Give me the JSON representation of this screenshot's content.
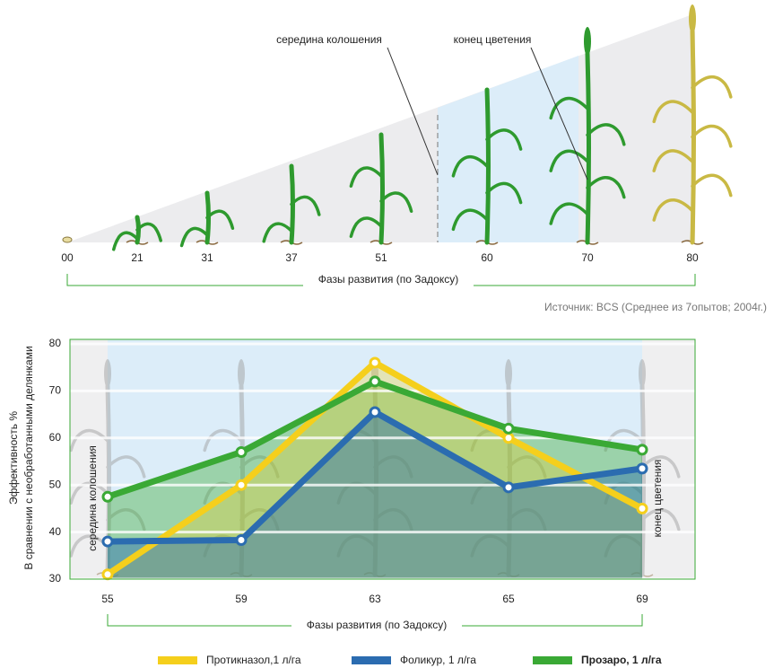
{
  "chart_data": [
    {
      "type": "stages",
      "categories": [
        "00",
        "21",
        "31",
        "37",
        "51",
        "60",
        "70",
        "80"
      ],
      "annotations": [
        "середина колошения",
        "конец цветения"
      ],
      "xlabel": "Фазы развития  (по Задоксу)",
      "source": "Источник: BCS (Среднее из 7опытов; 2004г.)"
    },
    {
      "type": "line",
      "categories": [
        "55",
        "59",
        "63",
        "65",
        "69"
      ],
      "ylabel": "Эффективность %",
      "ysublabel": "В сравнении с необработанными делянками",
      "xlabel": "Фазы развития  (по Задоксу)",
      "annotations": [
        "середина колошения",
        "конец цветения"
      ],
      "ylim": [
        30,
        80
      ],
      "yticks": [
        30,
        40,
        50,
        60,
        70,
        80
      ],
      "grid": true,
      "series": [
        {
          "name": "Протикназол,1 л/га",
          "color": "#f5cf1c",
          "values": [
            31,
            50,
            76,
            60,
            45
          ]
        },
        {
          "name": "Фоликур, 1 л/га",
          "color": "#2b6cb0",
          "values": [
            38,
            38.3,
            65.5,
            49.5,
            53.5
          ]
        },
        {
          "name": "Прозаро, 1 л/га",
          "color": "#3aa935",
          "values": [
            47.5,
            57,
            72,
            62,
            57.5
          ]
        }
      ]
    }
  ]
}
